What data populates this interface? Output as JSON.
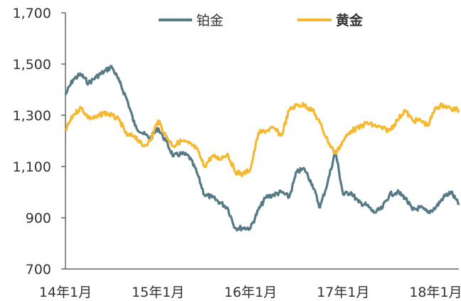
{
  "chart_data": {
    "type": "line",
    "y_ticks": [
      "1,700",
      "1,500",
      "1,300",
      "1,100",
      "900",
      "700"
    ],
    "x_ticks": [
      "14年1月",
      "15年1月",
      "16年1月",
      "17年1月",
      "18年1月"
    ],
    "ylim": [
      700,
      1700
    ],
    "xlim": [
      "2014-01",
      "2018-04"
    ],
    "grid": false,
    "legend_position": "top",
    "series": [
      {
        "name": "铂金",
        "color": "#557a85",
        "x": [
          "2014-01",
          "2014-02",
          "2014-03",
          "2014-04",
          "2014-05",
          "2014-06",
          "2014-07",
          "2014-08",
          "2014-09",
          "2014-10",
          "2014-11",
          "2014-12",
          "2015-01",
          "2015-02",
          "2015-03",
          "2015-04",
          "2015-05",
          "2015-06",
          "2015-07",
          "2015-08",
          "2015-09",
          "2015-10",
          "2015-11",
          "2015-12",
          "2016-01",
          "2016-02",
          "2016-03",
          "2016-04",
          "2016-05",
          "2016-06",
          "2016-07",
          "2016-08",
          "2016-09",
          "2016-10",
          "2016-11",
          "2016-12",
          "2017-01",
          "2017-02",
          "2017-03",
          "2017-04",
          "2017-05",
          "2017-06",
          "2017-07",
          "2017-08",
          "2017-09",
          "2017-10",
          "2017-11",
          "2017-12",
          "2018-01",
          "2018-02",
          "2018-03",
          "2018-04"
        ],
        "values": [
          1380,
          1440,
          1460,
          1425,
          1450,
          1470,
          1490,
          1430,
          1360,
          1260,
          1230,
          1210,
          1250,
          1200,
          1140,
          1150,
          1140,
          1080,
          990,
          980,
          960,
          940,
          860,
          860,
          860,
          930,
          980,
          990,
          1000,
          980,
          1080,
          1090,
          1030,
          940,
          1040,
          1160,
          990,
          1000,
          960,
          950,
          920,
          935,
          990,
          1000,
          980,
          930,
          940,
          920,
          940,
          980,
          1000,
          950
        ]
      },
      {
        "name": "黄金",
        "color": "#f5b82e",
        "x": [
          "2014-01",
          "2014-02",
          "2014-03",
          "2014-04",
          "2014-05",
          "2014-06",
          "2014-07",
          "2014-08",
          "2014-09",
          "2014-10",
          "2014-11",
          "2014-12",
          "2015-01",
          "2015-02",
          "2015-03",
          "2015-04",
          "2015-05",
          "2015-06",
          "2015-07",
          "2015-08",
          "2015-09",
          "2015-10",
          "2015-11",
          "2015-12",
          "2016-01",
          "2016-02",
          "2016-03",
          "2016-04",
          "2016-05",
          "2016-06",
          "2016-07",
          "2016-08",
          "2016-09",
          "2016-10",
          "2016-11",
          "2016-12",
          "2017-01",
          "2017-02",
          "2017-03",
          "2017-04",
          "2017-05",
          "2017-06",
          "2017-07",
          "2017-08",
          "2017-09",
          "2017-10",
          "2017-11",
          "2017-12",
          "2018-01",
          "2018-02",
          "2018-03",
          "2018-04"
        ],
        "values": [
          1240,
          1300,
          1330,
          1290,
          1290,
          1310,
          1300,
          1280,
          1220,
          1220,
          1180,
          1200,
          1280,
          1220,
          1180,
          1200,
          1190,
          1170,
          1100,
          1140,
          1130,
          1150,
          1080,
          1070,
          1090,
          1230,
          1240,
          1250,
          1220,
          1320,
          1340,
          1340,
          1320,
          1270,
          1200,
          1150,
          1200,
          1240,
          1250,
          1270,
          1260,
          1250,
          1240,
          1280,
          1320,
          1280,
          1280,
          1260,
          1330,
          1340,
          1325,
          1320
        ]
      }
    ]
  }
}
